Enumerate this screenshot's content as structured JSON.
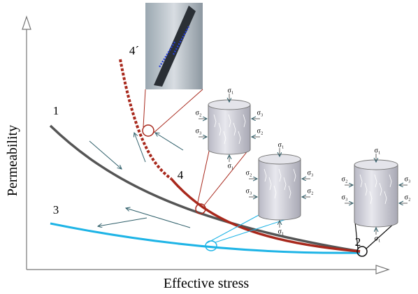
{
  "axes": {
    "y_label": "Permeability",
    "x_label": "Effective stress"
  },
  "curves": {
    "c1": "1",
    "c2": "2",
    "c3": "3",
    "c4": "4",
    "c4p": "4´"
  },
  "cylinders": [
    {
      "top": "σ₁",
      "left_upper": "σ₂",
      "right_upper": "σ₃",
      "left_lower": "σ₃",
      "right_lower": "σ₂",
      "bottom": "σ₁"
    },
    {
      "top": "σ₁",
      "left_upper": "σ₂",
      "right_upper": "σ₃",
      "left_lower": "σ₃",
      "right_lower": "σ₂",
      "bottom": "σ₁"
    },
    {
      "top": "σ₁",
      "left_upper": "σ₂",
      "right_upper": "σ₃",
      "left_lower": "σ₃",
      "right_lower": "σ₂",
      "bottom": "σ₁"
    }
  ]
}
